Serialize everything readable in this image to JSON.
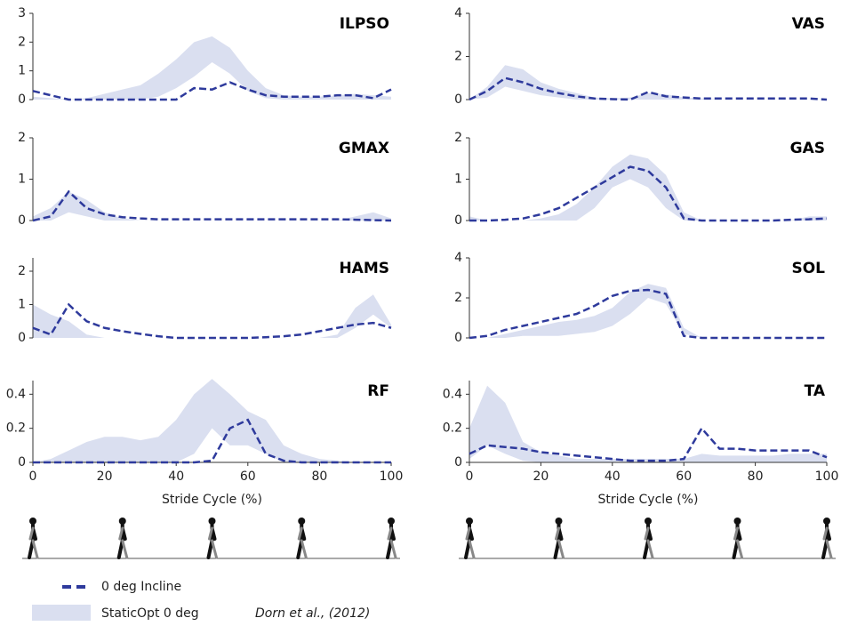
{
  "chart_data": [
    {
      "type": "line",
      "title": "ILPSO",
      "x": [
        0,
        5,
        10,
        15,
        20,
        25,
        30,
        35,
        40,
        45,
        50,
        55,
        60,
        65,
        70,
        75,
        80,
        85,
        90,
        95,
        100
      ],
      "xlim": [
        0,
        100
      ],
      "ylim": [
        0,
        3
      ],
      "yticks": [
        0,
        1,
        2,
        3
      ],
      "series": [
        {
          "name": "0 deg Incline",
          "color": "#2e3a9c",
          "values": [
            0.3,
            0.15,
            0,
            0,
            0,
            0,
            0,
            0,
            0,
            0.4,
            0.35,
            0.6,
            0.35,
            0.15,
            0.1,
            0.1,
            0.1,
            0.15,
            0.15,
            0.05,
            0.35
          ]
        },
        {
          "name": "StaticOpt 0 deg",
          "color": "#dadff0",
          "upper": [
            0.1,
            0.05,
            0,
            0.05,
            0.2,
            0.35,
            0.5,
            0.9,
            1.4,
            2.0,
            2.2,
            1.8,
            1.0,
            0.4,
            0.15,
            0.1,
            0.1,
            0.15,
            0.2,
            0.15,
            0.1
          ],
          "lower": [
            0,
            0,
            0,
            0,
            0,
            0,
            0,
            0.1,
            0.4,
            0.8,
            1.3,
            0.9,
            0.3,
            0.05,
            0,
            0,
            0,
            0,
            0,
            0,
            0
          ]
        }
      ]
    },
    {
      "type": "line",
      "title": "VAS",
      "x": [
        0,
        5,
        10,
        15,
        20,
        25,
        30,
        35,
        40,
        45,
        50,
        55,
        60,
        65,
        70,
        75,
        80,
        85,
        90,
        95,
        100
      ],
      "xlim": [
        0,
        100
      ],
      "ylim": [
        0,
        4
      ],
      "yticks": [
        0,
        2,
        4
      ],
      "series": [
        {
          "color": "#2e3a9c",
          "values": [
            0,
            0.4,
            1.0,
            0.8,
            0.5,
            0.3,
            0.15,
            0.05,
            0.02,
            0,
            0.35,
            0.15,
            0.1,
            0.05,
            0.05,
            0.05,
            0.05,
            0.05,
            0.05,
            0.05,
            0
          ]
        },
        {
          "color": "#dadff0",
          "upper": [
            0,
            0.6,
            1.6,
            1.4,
            0.8,
            0.5,
            0.3,
            0.1,
            0.05,
            0.1,
            0.3,
            0.25,
            0.1,
            0.05,
            0,
            0,
            0,
            0,
            0,
            0,
            0
          ],
          "lower": [
            0,
            0.1,
            0.6,
            0.4,
            0.2,
            0.1,
            0,
            0,
            0,
            0,
            0,
            0,
            0,
            0,
            0,
            0,
            0,
            0,
            0,
            0,
            0
          ]
        }
      ]
    },
    {
      "type": "line",
      "title": "GMAX",
      "x": [
        0,
        5,
        10,
        15,
        20,
        25,
        30,
        35,
        40,
        45,
        50,
        55,
        60,
        65,
        70,
        75,
        80,
        85,
        90,
        95,
        100
      ],
      "xlim": [
        0,
        100
      ],
      "ylim": [
        0,
        2
      ],
      "yticks": [
        0,
        1,
        2
      ],
      "series": [
        {
          "color": "#2e3a9c",
          "values": [
            0,
            0.1,
            0.7,
            0.3,
            0.15,
            0.08,
            0.05,
            0.03,
            0.03,
            0.03,
            0.03,
            0.03,
            0.03,
            0.03,
            0.03,
            0.03,
            0.03,
            0.03,
            0.02,
            0.01,
            0
          ]
        },
        {
          "color": "#dadff0",
          "upper": [
            0.1,
            0.3,
            0.7,
            0.5,
            0.2,
            0.05,
            0,
            0,
            0,
            0,
            0,
            0,
            0,
            0,
            0,
            0,
            0,
            0,
            0.1,
            0.2,
            0.05
          ],
          "lower": [
            0,
            0,
            0.2,
            0.1,
            0,
            0,
            0,
            0,
            0,
            0,
            0,
            0,
            0,
            0,
            0,
            0,
            0,
            0,
            0,
            0,
            0
          ]
        }
      ]
    },
    {
      "type": "line",
      "title": "GAS",
      "x": [
        0,
        5,
        10,
        15,
        20,
        25,
        30,
        35,
        40,
        45,
        50,
        55,
        60,
        65,
        70,
        75,
        80,
        85,
        90,
        95,
        100
      ],
      "xlim": [
        0,
        100
      ],
      "ylim": [
        0,
        2
      ],
      "yticks": [
        0,
        1,
        2
      ],
      "series": [
        {
          "color": "#2e3a9c",
          "values": [
            0,
            0,
            0.02,
            0.05,
            0.15,
            0.3,
            0.55,
            0.8,
            1.05,
            1.3,
            1.2,
            0.8,
            0.05,
            0,
            0,
            0,
            0,
            0,
            0.02,
            0.03,
            0.05
          ]
        },
        {
          "color": "#dadff0",
          "upper": [
            0.1,
            0,
            0,
            0,
            0.05,
            0.15,
            0.4,
            0.8,
            1.3,
            1.6,
            1.5,
            1.1,
            0.2,
            0,
            0,
            0,
            0,
            0,
            0,
            0.1,
            0.1
          ],
          "lower": [
            0,
            0,
            0,
            0,
            0,
            0,
            0,
            0.3,
            0.8,
            1.0,
            0.8,
            0.3,
            0,
            0,
            0,
            0,
            0,
            0,
            0,
            0,
            0
          ]
        }
      ]
    },
    {
      "type": "line",
      "title": "HAMS",
      "x": [
        0,
        5,
        10,
        15,
        20,
        25,
        30,
        35,
        40,
        45,
        50,
        55,
        60,
        65,
        70,
        75,
        80,
        85,
        90,
        95,
        100
      ],
      "xlim": [
        0,
        100
      ],
      "ylim": [
        0,
        2.4
      ],
      "yticks": [
        0,
        1,
        2
      ],
      "series": [
        {
          "color": "#2e3a9c",
          "values": [
            0.3,
            0.1,
            1.0,
            0.5,
            0.3,
            0.2,
            0.12,
            0.05,
            0,
            0,
            0,
            0,
            0,
            0.02,
            0.05,
            0.1,
            0.2,
            0.3,
            0.4,
            0.45,
            0.3
          ]
        },
        {
          "color": "#dadff0",
          "upper": [
            1.0,
            0.7,
            0.5,
            0.1,
            0,
            0,
            0,
            0,
            0,
            0,
            0,
            0,
            0,
            0,
            0,
            0,
            0,
            0.1,
            0.9,
            1.3,
            0.4
          ],
          "lower": [
            0,
            0,
            0,
            0,
            0,
            0,
            0,
            0,
            0,
            0,
            0,
            0,
            0,
            0,
            0,
            0,
            0,
            0,
            0.3,
            0.7,
            0.3
          ]
        }
      ]
    },
    {
      "type": "line",
      "title": "SOL",
      "x": [
        0,
        5,
        10,
        15,
        20,
        25,
        30,
        35,
        40,
        45,
        50,
        55,
        60,
        65,
        70,
        75,
        80,
        85,
        90,
        95,
        100
      ],
      "xlim": [
        0,
        100
      ],
      "ylim": [
        0,
        4
      ],
      "yticks": [
        0,
        2,
        4
      ],
      "series": [
        {
          "color": "#2e3a9c",
          "values": [
            0,
            0.1,
            0.4,
            0.6,
            0.8,
            1.0,
            1.2,
            1.6,
            2.1,
            2.35,
            2.4,
            2.2,
            0.1,
            0,
            0,
            0,
            0,
            0,
            0,
            0,
            0
          ]
        },
        {
          "color": "#dadff0",
          "upper": [
            0,
            0,
            0.2,
            0.4,
            0.6,
            0.8,
            0.9,
            1.1,
            1.5,
            2.3,
            2.7,
            2.5,
            0.5,
            0,
            0,
            0,
            0,
            0,
            0,
            0,
            0
          ],
          "lower": [
            0,
            0,
            0,
            0.1,
            0.1,
            0.1,
            0.2,
            0.3,
            0.6,
            1.2,
            2.0,
            1.7,
            0.2,
            0,
            0,
            0,
            0,
            0,
            0,
            0,
            0
          ]
        }
      ]
    },
    {
      "type": "line",
      "title": "RF",
      "xlabel": "Stride Cycle (%)",
      "x": [
        0,
        5,
        10,
        15,
        20,
        25,
        30,
        35,
        40,
        45,
        50,
        55,
        60,
        65,
        70,
        75,
        80,
        85,
        90,
        95,
        100
      ],
      "xlim": [
        0,
        100
      ],
      "xticks": [
        0,
        20,
        40,
        60,
        80,
        100
      ],
      "ylim": [
        0,
        0.48
      ],
      "yticks": [
        0,
        0.2,
        0.4
      ],
      "series": [
        {
          "color": "#2e3a9c",
          "values": [
            0,
            0,
            0,
            0,
            0,
            0,
            0,
            0,
            0,
            0,
            0.01,
            0.2,
            0.25,
            0.05,
            0.01,
            0,
            0,
            0,
            0,
            0,
            0
          ]
        },
        {
          "color": "#dadff0",
          "upper": [
            0,
            0.02,
            0.07,
            0.12,
            0.15,
            0.15,
            0.13,
            0.15,
            0.25,
            0.4,
            0.49,
            0.4,
            0.3,
            0.25,
            0.1,
            0.05,
            0.02,
            0.01,
            0,
            0,
            0
          ],
          "lower": [
            0,
            0,
            0,
            0,
            0,
            0,
            0,
            0,
            0,
            0.05,
            0.2,
            0.1,
            0.1,
            0.05,
            0,
            0,
            0,
            0,
            0,
            0,
            0
          ]
        }
      ]
    },
    {
      "type": "line",
      "title": "TA",
      "xlabel": "Stride Cycle (%)",
      "x": [
        0,
        5,
        10,
        15,
        20,
        25,
        30,
        35,
        40,
        45,
        50,
        55,
        60,
        65,
        70,
        75,
        80,
        85,
        90,
        95,
        100
      ],
      "xlim": [
        0,
        100
      ],
      "xticks": [
        0,
        20,
        40,
        60,
        80,
        100
      ],
      "ylim": [
        0,
        0.48
      ],
      "yticks": [
        0,
        0.2,
        0.4
      ],
      "series": [
        {
          "color": "#2e3a9c",
          "values": [
            0.05,
            0.1,
            0.09,
            0.08,
            0.06,
            0.05,
            0.04,
            0.03,
            0.02,
            0.01,
            0.01,
            0.01,
            0.02,
            0.2,
            0.08,
            0.08,
            0.07,
            0.07,
            0.07,
            0.07,
            0.03
          ]
        },
        {
          "color": "#dadff0",
          "upper": [
            0.2,
            0.45,
            0.35,
            0.12,
            0.06,
            0.04,
            0.02,
            0.02,
            0.02,
            0.02,
            0.02,
            0.02,
            0.02,
            0.05,
            0.04,
            0.04,
            0.04,
            0.04,
            0.05,
            0.05,
            0.05
          ],
          "lower": [
            0.02,
            0.1,
            0.05,
            0.01,
            0,
            0,
            0,
            0,
            0,
            0,
            0,
            0,
            0,
            0,
            0,
            0,
            0,
            0,
            0,
            0,
            0
          ]
        }
      ]
    }
  ],
  "citation": "Dorn et al., (2012)"
}
